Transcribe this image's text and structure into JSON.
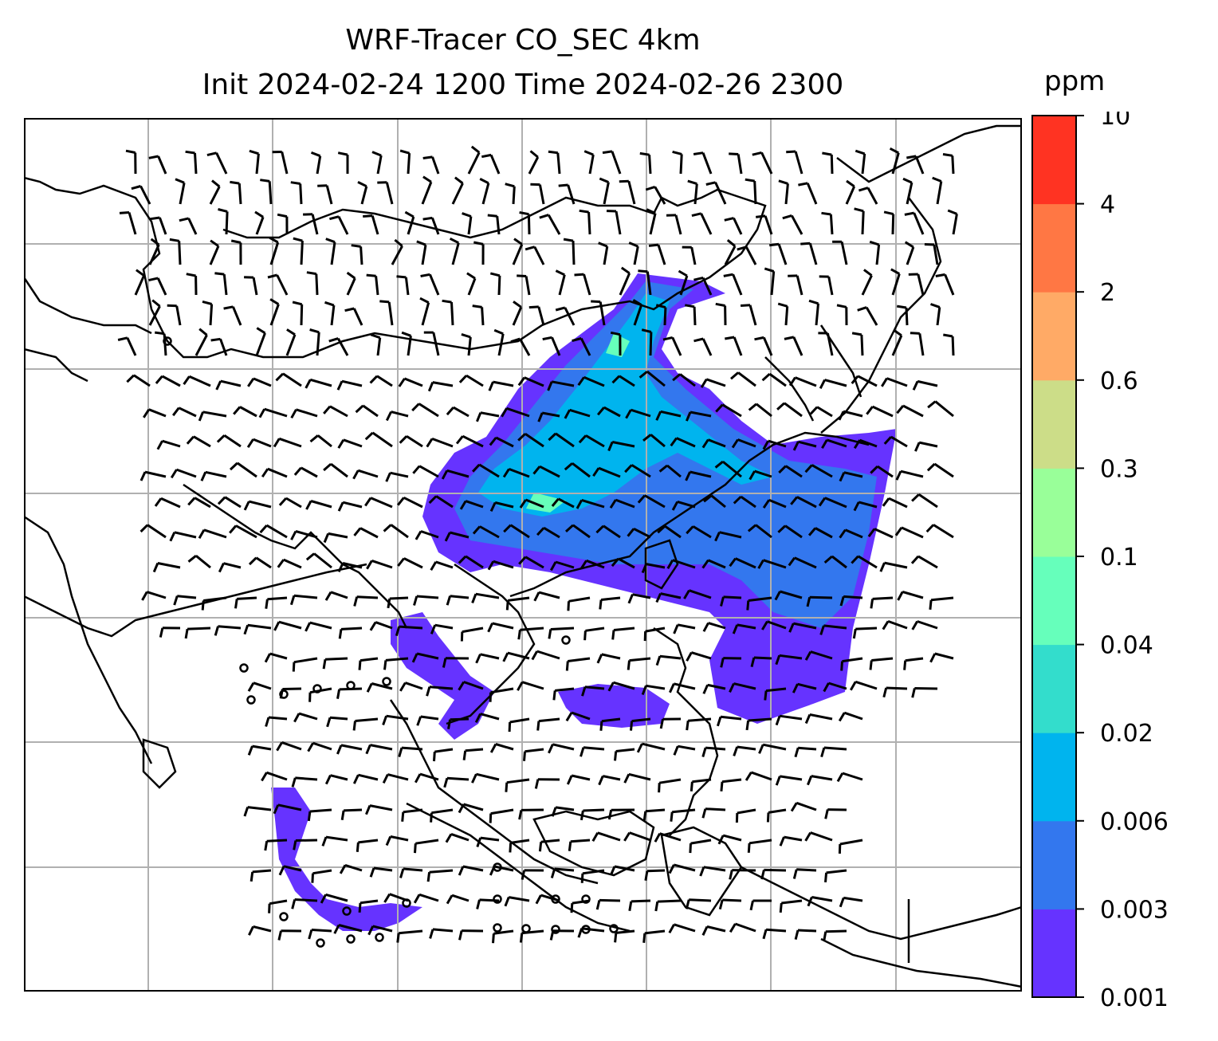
{
  "title_line1": "WRF-Tracer CO_SEC 4km",
  "title_line2": "Init 2024-02-24 1200 Time 2024-02-26 2300",
  "colorbar": {
    "unit": "ppm",
    "levels": [
      "0.001",
      "0.003",
      "0.006",
      "0.02",
      "0.04",
      "0.1",
      "0.3",
      "0.6",
      "2",
      "4",
      "10"
    ],
    "colors": [
      "#6633ff",
      "#3377ee",
      "#00b4ee",
      "#33ddcc",
      "#66ffbb",
      "#99ff99",
      "#ccdd88",
      "#ffaa66",
      "#ff7744",
      "#ff3322"
    ]
  },
  "map": {
    "gridline_color": "#b0b0b0",
    "coastline_color": "#000000",
    "field_colors": {
      "low": "#6633ff",
      "mid": "#3377ee",
      "high": "#00b4ee",
      "peak": "#66ffbb"
    }
  }
}
